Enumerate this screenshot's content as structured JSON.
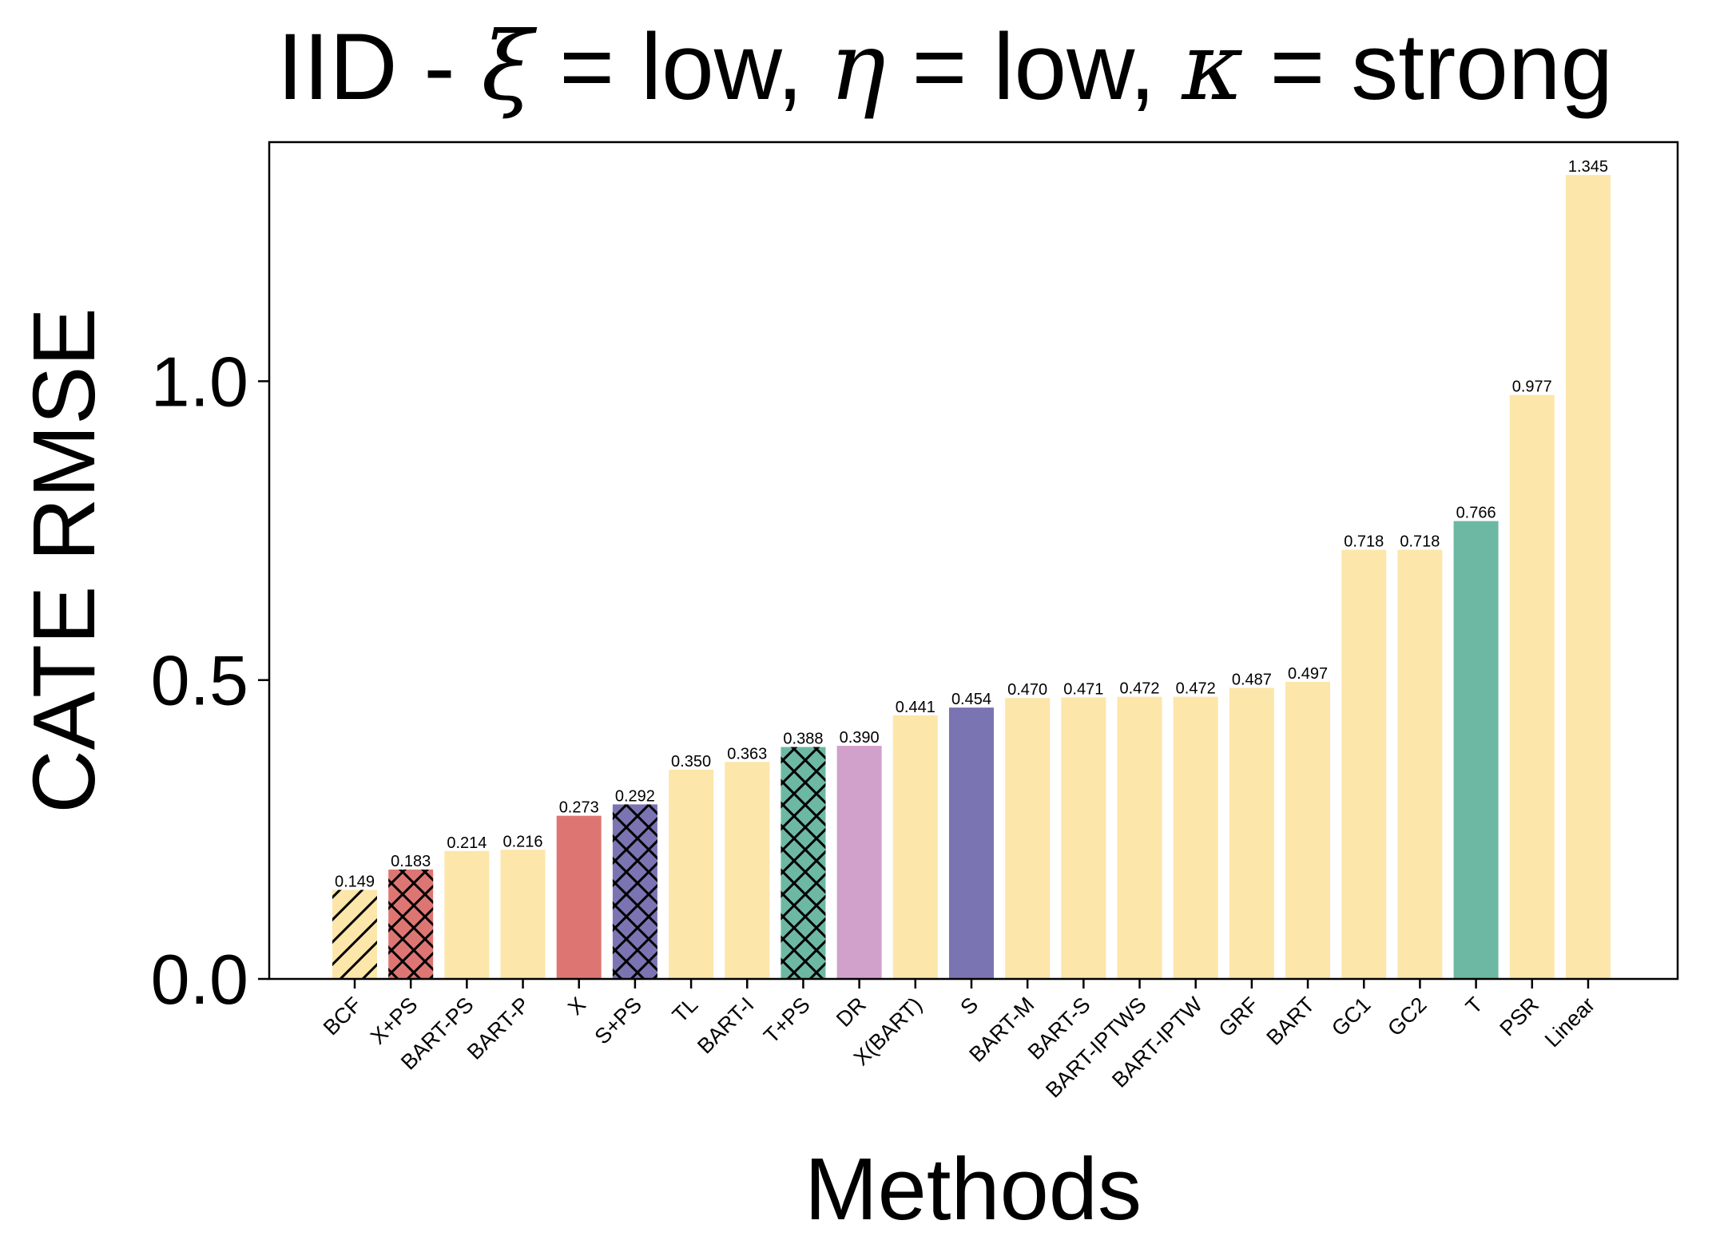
{
  "chart_data": {
    "type": "bar",
    "title": {
      "prefix": "IID - ",
      "sym1": "ξ",
      "part1": " = low, ",
      "sym2": "η",
      "part2": " = low, ",
      "sym3": "κ",
      "part3": " = strong"
    },
    "xlabel": "Methods",
    "ylabel": "CATE RMSE",
    "ylim": [
      0,
      1.4
    ],
    "yticks": [
      0.0,
      0.5,
      1.0
    ],
    "ytick_labels": [
      "0.0",
      "0.5",
      "1.0"
    ],
    "grid": false,
    "legend": "none",
    "categories": [
      "BCF",
      "X+PS",
      "BART-PS",
      "BART-P",
      "X",
      "S+PS",
      "TL",
      "BART-I",
      "T+PS",
      "DR",
      "X(BART)",
      "S",
      "BART-M",
      "BART-S",
      "BART-IPTWS",
      "BART-IPTW",
      "GRF",
      "BART",
      "GC1",
      "GC2",
      "T",
      "PSR",
      "Linear"
    ],
    "values": [
      0.149,
      0.183,
      0.214,
      0.216,
      0.273,
      0.292,
      0.35,
      0.363,
      0.388,
      0.39,
      0.441,
      0.454,
      0.47,
      0.471,
      0.472,
      0.472,
      0.487,
      0.497,
      0.718,
      0.718,
      0.766,
      0.977,
      1.345
    ],
    "value_labels": [
      "0.149",
      "0.183",
      "0.214",
      "0.216",
      "0.273",
      "0.292",
      "0.350",
      "0.363",
      "0.388",
      "0.390",
      "0.441",
      "0.454",
      "0.470",
      "0.471",
      "0.472",
      "0.472",
      "0.487",
      "0.497",
      "0.718",
      "0.718",
      "0.766",
      "0.977",
      "1.345"
    ],
    "bar_colors": [
      "#fce6a9",
      "#dd7672",
      "#fce6a9",
      "#fce6a9",
      "#dd7672",
      "#7a74b2",
      "#fce6a9",
      "#fce6a9",
      "#6cb8a3",
      "#d1a1cb",
      "#fce6a9",
      "#7a74b2",
      "#fce6a9",
      "#fce6a9",
      "#fce6a9",
      "#fce6a9",
      "#fce6a9",
      "#fce6a9",
      "#fce6a9",
      "#fce6a9",
      "#6cb8a3",
      "#fce6a9",
      "#fce6a9"
    ],
    "bar_hatches": [
      "diagonal",
      "crosshatch",
      "none",
      "none",
      "none",
      "crosshatch",
      "none",
      "none",
      "crosshatch",
      "none",
      "none",
      "none",
      "none",
      "none",
      "none",
      "none",
      "none",
      "none",
      "none",
      "none",
      "none",
      "none",
      "none"
    ]
  }
}
